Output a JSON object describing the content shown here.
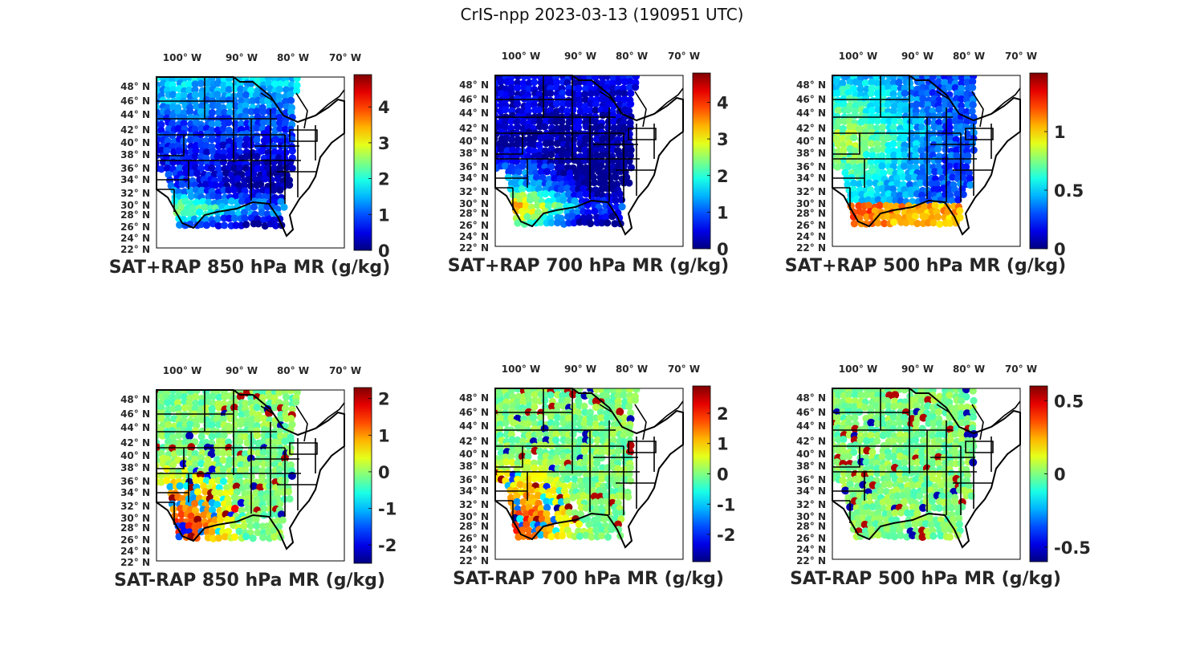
{
  "figure_title": "CrIS-npp 2023-03-13 (190951 UTC)",
  "lon_ticks": [
    "100° W",
    "90° W",
    "80° W",
    "70° W"
  ],
  "lat_ticks": [
    "48° N",
    "46° N",
    "44° N",
    "42° N",
    "40° N",
    "38° N",
    "36° N",
    "34° N",
    "32° N",
    "30° N",
    "28° N",
    "26° N",
    "24° N",
    "22° N"
  ],
  "colormap": "jet",
  "colors": {
    "map_border": "#000000",
    "background": "#ffffff",
    "tick_text": "#262626"
  },
  "panels": [
    {
      "title": "SAT+RAP 850 hPa MR (g/kg)",
      "kind": "total",
      "clim": [
        0,
        4.9
      ],
      "ticks": [
        "0",
        "1",
        "2",
        "3",
        "4"
      ],
      "tick_values": [
        0,
        1,
        2,
        3,
        4
      ]
    },
    {
      "title": "SAT+RAP 700 hPa MR (g/kg)",
      "kind": "total",
      "clim": [
        0,
        4.8
      ],
      "ticks": [
        "0",
        "1",
        "2",
        "3",
        "4"
      ],
      "tick_values": [
        0,
        1,
        2,
        3,
        4
      ]
    },
    {
      "title": "SAT+RAP 500 hPa MR (g/kg)",
      "kind": "total",
      "clim": [
        0,
        1.5
      ],
      "ticks": [
        "0",
        "0.5",
        "1"
      ],
      "tick_values": [
        0,
        0.5,
        1
      ]
    },
    {
      "title": "SAT-RAP 850 hPa MR (g/kg)",
      "kind": "diff",
      "clim": [
        -2.5,
        2.3
      ],
      "ticks": [
        "-2",
        "-1",
        "0",
        "1",
        "2"
      ],
      "tick_values": [
        -2,
        -1,
        0,
        1,
        2
      ]
    },
    {
      "title": "SAT-RAP 700 hPa MR (g/kg)",
      "kind": "diff",
      "clim": [
        -2.9,
        2.9
      ],
      "ticks": [
        "-2",
        "-1",
        "0",
        "1",
        "2"
      ],
      "tick_values": [
        -2,
        -1,
        0,
        1,
        2
      ]
    },
    {
      "title": "SAT-RAP 500 hPa MR (g/kg)",
      "kind": "diff",
      "clim": [
        -0.6,
        0.6
      ],
      "ticks": [
        "-0.5",
        "0",
        "0.5"
      ],
      "tick_values": [
        -0.5,
        0,
        0.5
      ]
    }
  ]
}
